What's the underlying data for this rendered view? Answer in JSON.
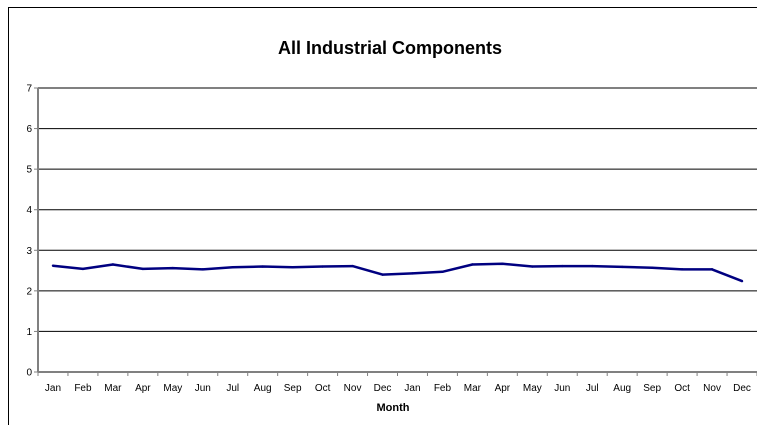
{
  "chart_data": {
    "type": "line",
    "title": "All Industrial Components",
    "xlabel": "Month",
    "ylabel": "",
    "ylim": [
      0,
      7
    ],
    "yticks": [
      0,
      1,
      2,
      3,
      4,
      5,
      6,
      7
    ],
    "grid": true,
    "legend": "none",
    "categories": [
      "Jan",
      "Feb",
      "Mar",
      "Apr",
      "May",
      "Jun",
      "Jul",
      "Aug",
      "Sep",
      "Oct",
      "Nov",
      "Dec",
      "Jan",
      "Feb",
      "Mar",
      "Apr",
      "May",
      "Jun",
      "Jul",
      "Aug",
      "Sep",
      "Oct",
      "Nov",
      "Dec"
    ],
    "series": [
      {
        "values": [
          2.62,
          2.54,
          2.65,
          2.54,
          2.56,
          2.53,
          2.58,
          2.6,
          2.58,
          2.6,
          2.61,
          2.4,
          2.43,
          2.47,
          2.65,
          2.67,
          2.6,
          2.61,
          2.61,
          2.59,
          2.57,
          2.53,
          2.53,
          2.24
        ],
        "color": "#000080"
      }
    ],
    "colors": {
      "gridline": "#000000",
      "axis": "#808080"
    }
  }
}
